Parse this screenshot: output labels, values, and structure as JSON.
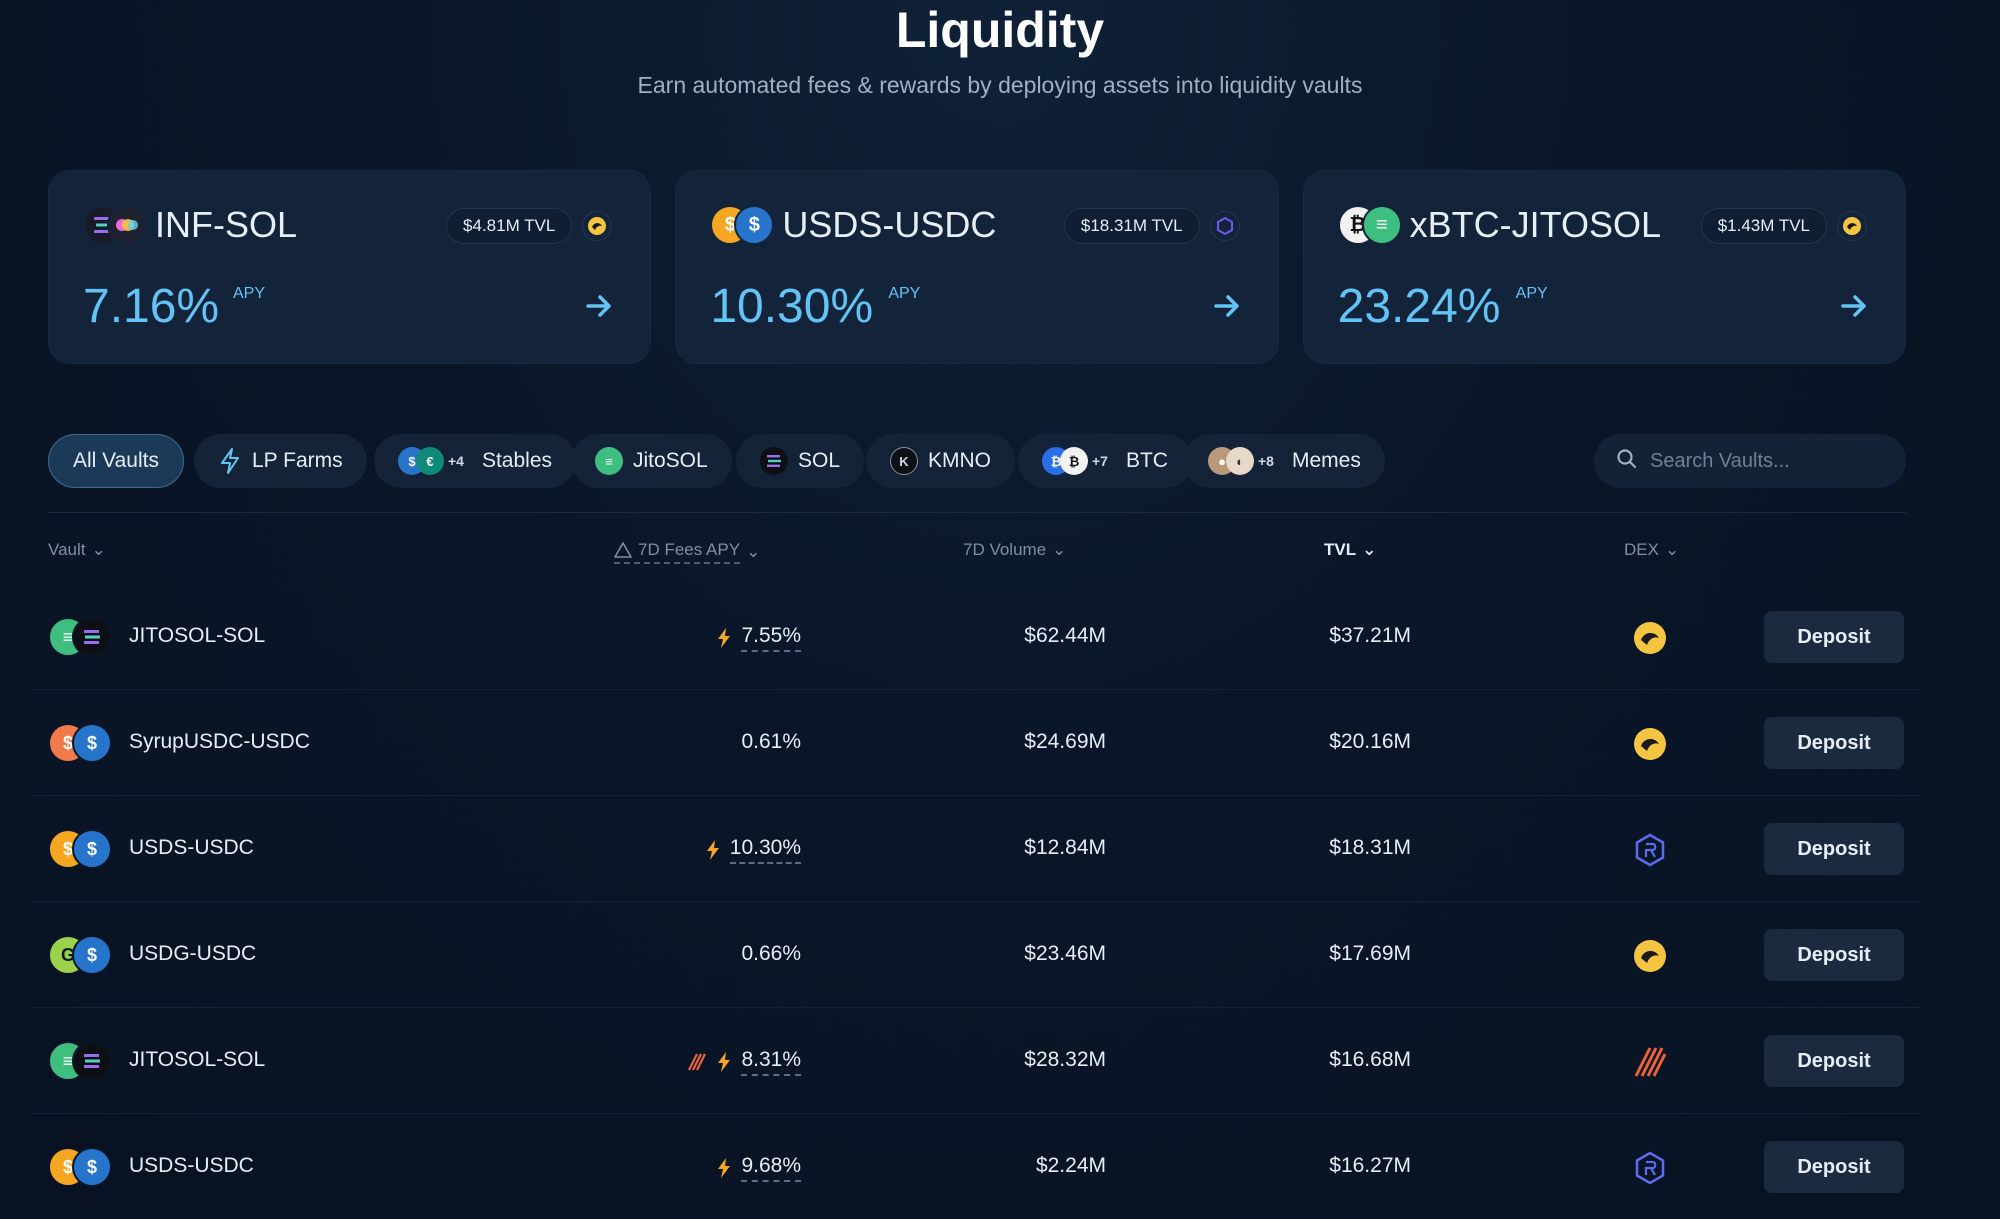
{
  "header": {
    "title": "Liquidity",
    "subtitle": "Earn automated fees & rewards by deploying assets into liquidity vaults"
  },
  "featured": [
    {
      "name": "INF-SOL",
      "tvl": "$4.81M TVL",
      "apy": "7.16%",
      "apy_label": "APY",
      "dex": "orca",
      "colors": [
        "#1a1f2b",
        "#f5b73b"
      ]
    },
    {
      "name": "USDS-USDC",
      "tvl": "$18.31M TVL",
      "apy": "10.30%",
      "apy_label": "APY",
      "dex": "raydium",
      "colors": [
        "#f5a623",
        "#2775ca"
      ]
    },
    {
      "name": "xBTC-JITOSOL",
      "tvl": "$1.43M TVL",
      "apy": "23.24%",
      "apy_label": "APY",
      "dex": "orca",
      "colors": [
        "#f2f2f2",
        "#3fbf7f"
      ]
    }
  ],
  "filters": {
    "chips": [
      {
        "label": "All Vaults",
        "active": true
      },
      {
        "label": "LP Farms",
        "icon": "lightning-icon"
      },
      {
        "label": "Stables",
        "extra": "+4"
      },
      {
        "label": "JitoSOL"
      },
      {
        "label": "SOL"
      },
      {
        "label": "KMNO"
      },
      {
        "label": "BTC",
        "extra": "+7"
      },
      {
        "label": "Memes",
        "extra": "+8"
      }
    ],
    "search_placeholder": "Search Vaults..."
  },
  "table": {
    "columns": {
      "vault": "Vault",
      "fees_apy": "7D Fees APY",
      "volume": "7D Volume",
      "tvl": "TVL",
      "dex": "DEX"
    },
    "rows": [
      {
        "name": "JITOSOL-SOL",
        "apy": "7.55%",
        "boost": true,
        "volume": "$62.44M",
        "tvl": "$37.21M",
        "dex": "orca",
        "action": "Deposit"
      },
      {
        "name": "SyrupUSDC-USDC",
        "apy": "0.61%",
        "boost": false,
        "volume": "$24.69M",
        "tvl": "$20.16M",
        "dex": "orca",
        "action": "Deposit"
      },
      {
        "name": "USDS-USDC",
        "apy": "10.30%",
        "boost": true,
        "volume": "$12.84M",
        "tvl": "$18.31M",
        "dex": "raydium",
        "action": "Deposit"
      },
      {
        "name": "USDG-USDC",
        "apy": "0.66%",
        "boost": false,
        "volume": "$23.46M",
        "tvl": "$17.69M",
        "dex": "orca",
        "action": "Deposit"
      },
      {
        "name": "JITOSOL-SOL",
        "apy": "8.31%",
        "boost": true,
        "extra_reward": true,
        "volume": "$28.32M",
        "tvl": "$16.68M",
        "dex": "meteora",
        "action": "Deposit"
      },
      {
        "name": "USDS-USDC",
        "apy": "9.68%",
        "boost": true,
        "volume": "$2.24M",
        "tvl": "$16.27M",
        "dex": "raydium",
        "action": "Deposit"
      }
    ]
  },
  "colors": {
    "accent": "#63c3f5",
    "background": "#0a1628",
    "card": "#12233a",
    "boost": "#f5a623"
  }
}
